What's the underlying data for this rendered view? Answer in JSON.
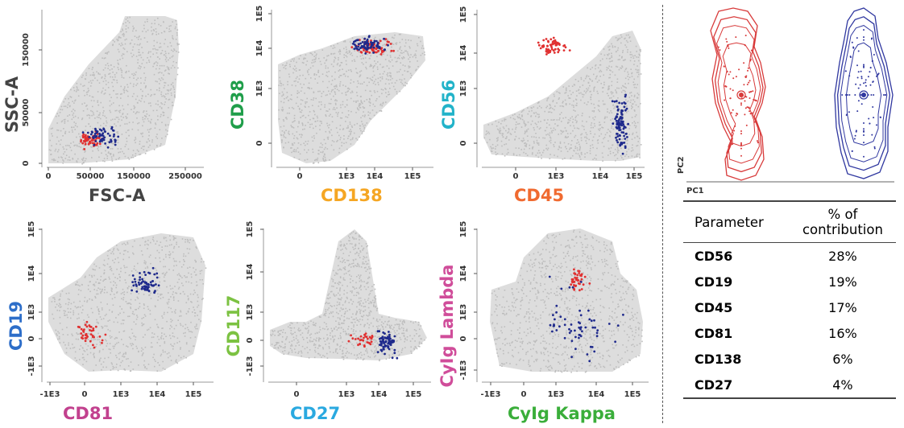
{
  "colors": {
    "background_events": "#d2d2d2",
    "population_red": "#e03131",
    "population_blue": "#1f2a8c"
  },
  "axis_label_colors": {
    "SSC-A": "#444444",
    "FSC-A": "#444444",
    "CD38": "#1f9e4a",
    "CD138": "#f5a623",
    "CD56": "#22b3c9",
    "CD45": "#f06a30",
    "CD19": "#2d6ec9",
    "CD81": "#c2418e",
    "CD117": "#7cc242",
    "CD27": "#2aa9e0",
    "CyIg Lambda": "#d04d9a",
    "CyIg Kappa": "#3aae3a"
  },
  "chart_data": [
    {
      "type": "scatter",
      "xlabel": "FSC-A",
      "ylabel": "SSC-A",
      "x_ticks": [
        "0",
        "50000",
        "150000",
        "250000"
      ],
      "y_ticks": [
        "0",
        "50000",
        "150000"
      ],
      "xlim": [
        0,
        262144
      ],
      "ylim": [
        0,
        180000
      ],
      "scale": "linear",
      "series": [
        {
          "color": "red",
          "x_range": [
            40000,
            100000
          ],
          "y_range": [
            15000,
            40000
          ],
          "count": 60
        },
        {
          "color": "blue",
          "x_range": [
            45000,
            130000
          ],
          "y_range": [
            15000,
            50000
          ],
          "count": 60
        }
      ]
    },
    {
      "type": "scatter",
      "xlabel": "CD138",
      "ylabel": "CD38",
      "x_ticks": [
        "0",
        "1E3",
        "1E4",
        "1E5"
      ],
      "y_ticks": [
        "0",
        "1E3",
        "1E4",
        "1E5"
      ],
      "scale": "biexponential",
      "series": [
        {
          "color": "red",
          "x_range": [
            "1E3",
            "7E4"
          ],
          "y_range": [
            "5E3",
            "2.5E4"
          ],
          "count": 70
        },
        {
          "color": "blue",
          "x_range": [
            "8E2",
            "3E4"
          ],
          "y_range": [
            "6E3",
            "2.5E4"
          ],
          "count": 70
        }
      ]
    },
    {
      "type": "scatter",
      "xlabel": "CD45",
      "ylabel": "CD56",
      "x_ticks": [
        "0",
        "1E3",
        "1E4",
        "1E5"
      ],
      "y_ticks": [
        "0",
        "1E3",
        "1E4",
        "1E5"
      ],
      "scale": "biexponential",
      "series": [
        {
          "color": "red",
          "x_range": [
            "1E2",
            "5E3"
          ],
          "y_range": [
            "8E3",
            "3E4"
          ],
          "count": 60
        },
        {
          "color": "blue",
          "x_range": [
            "2E4",
            "8E4"
          ],
          "y_range": [
            "-1E2",
            "1.5E3"
          ],
          "count": 90
        }
      ]
    },
    {
      "type": "scatter",
      "xlabel": "CD81",
      "ylabel": "CD19",
      "x_ticks": [
        "-1E3",
        "0",
        "1E3",
        "1E4",
        "1E5"
      ],
      "y_ticks": [
        "-1E3",
        "0",
        "1E3",
        "1E4",
        "1E5"
      ],
      "scale": "biexponential",
      "series": [
        {
          "color": "red",
          "x_range": [
            "-1E2",
            "2E2"
          ],
          "y_range": [
            "-2E2",
            "9E2"
          ],
          "count": 40
        },
        {
          "color": "blue",
          "x_range": [
            "1.5E3",
            "1.5E4"
          ],
          "y_range": [
            "2E3",
            "1.6E4"
          ],
          "count": 60
        }
      ]
    },
    {
      "type": "scatter",
      "xlabel": "CD27",
      "ylabel": "CD117",
      "x_ticks": [
        "0",
        "1E3",
        "1E4",
        "1E5"
      ],
      "y_ticks": [
        "-1E3",
        "0",
        "1E3",
        "1E4",
        "1E5"
      ],
      "scale": "biexponential",
      "series": [
        {
          "color": "red",
          "x_range": [
            "7E2",
            "1.5E4"
          ],
          "y_range": [
            "-1E2",
            "1E2"
          ],
          "count": 30
        },
        {
          "color": "blue",
          "x_range": [
            "6E3",
            "4E4"
          ],
          "y_range": [
            "-4E2",
            "2E2"
          ],
          "count": 70
        }
      ]
    },
    {
      "type": "scatter",
      "xlabel": "CyIg Kappa",
      "ylabel": "CyIg Lambda",
      "x_ticks": [
        "-1E3",
        "0",
        "1E3",
        "1E4",
        "1E5"
      ],
      "y_ticks": [
        "-1E3",
        "0",
        "1E3",
        "1E4",
        "1E5"
      ],
      "scale": "biexponential",
      "series": [
        {
          "color": "red",
          "x_range": [
            "1.5E3",
            "7E3"
          ],
          "y_range": [
            "2.5E3",
            "2E4"
          ],
          "count": 40
        },
        {
          "color": "blue",
          "x_range": [
            "2E2",
            "8E4"
          ],
          "y_range": [
            "-9E2",
            "7E4"
          ],
          "count": 60
        }
      ]
    },
    {
      "type": "scatter",
      "xlabel": "PC1",
      "ylabel": "PC2",
      "series": [
        {
          "color": "red",
          "shape": "contour with points and median"
        },
        {
          "color": "blue",
          "shape": "contour with points and median"
        }
      ]
    },
    {
      "type": "table",
      "columns": [
        "Parameter",
        "% of contribution"
      ],
      "rows": [
        [
          "CD56",
          "28%"
        ],
        [
          "CD19",
          "19%"
        ],
        [
          "CD45",
          "17%"
        ],
        [
          "CD81",
          "16%"
        ],
        [
          "CD138",
          "6%"
        ],
        [
          "CD27",
          "4%"
        ]
      ]
    }
  ],
  "table": {
    "header": {
      "parameter": "Parameter",
      "contribution_line1": "% of",
      "contribution_line2": "contribution"
    },
    "rows": [
      {
        "parameter": "CD56",
        "value": "28%"
      },
      {
        "parameter": "CD19",
        "value": "19%"
      },
      {
        "parameter": "CD45",
        "value": "17%"
      },
      {
        "parameter": "CD81",
        "value": "16%"
      },
      {
        "parameter": "CD138",
        "value": "6%"
      },
      {
        "parameter": "CD27",
        "value": "4%"
      }
    ]
  },
  "pca_labels": {
    "x": "PC1",
    "y": "PC2"
  }
}
